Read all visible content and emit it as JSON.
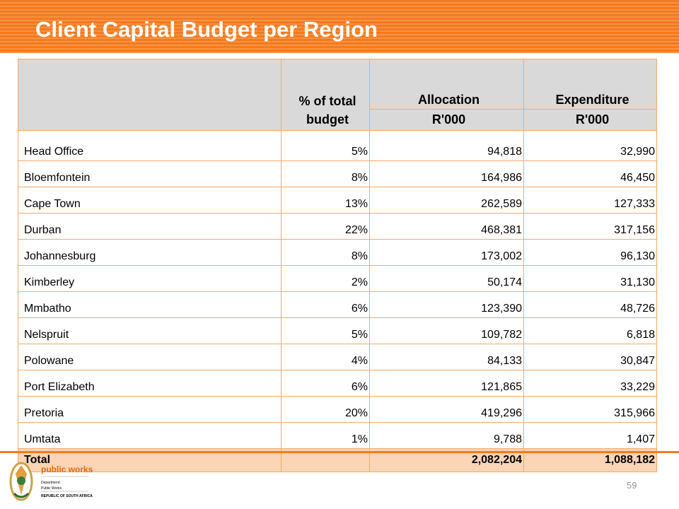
{
  "header": {
    "title": "Client Capital Budget per Region"
  },
  "table": {
    "columns": [
      "% of total budget",
      "Allocation",
      "Expenditure"
    ],
    "units": [
      "R'000",
      "R'000"
    ],
    "rows": [
      [
        "Head Office",
        "5%",
        "94,818",
        "32,990"
      ],
      [
        "Bloemfontein",
        "8%",
        "164,986",
        "46,450"
      ],
      [
        "Cape Town",
        "13%",
        "262,589",
        "127,333"
      ],
      [
        "Durban",
        "22%",
        "468,381",
        "317,156"
      ],
      [
        "Johannesburg",
        "8%",
        "173,002",
        "96,130"
      ],
      [
        "Kimberley",
        "2%",
        "50,174",
        "31,130"
      ],
      [
        "Mmbatho",
        "6%",
        "123,390",
        "48,726"
      ],
      [
        "Nelspruit",
        "5%",
        "109,782",
        "6,818"
      ],
      [
        "Polowane",
        "4%",
        "84,133",
        "30,847"
      ],
      [
        "Port Elizabeth",
        "6%",
        "121,865",
        "33,229"
      ],
      [
        "Pretoria",
        "20%",
        "419,296",
        "315,966"
      ],
      [
        "Umtata",
        "1%",
        "9,788",
        "1,407"
      ]
    ],
    "total": [
      "Total",
      "2,082,204",
      "1,088,182"
    ]
  },
  "footer": {
    "logo": {
      "name": "public works",
      "lines": [
        "Department:",
        "Public Works",
        "REPUBLIC OF SOUTH AFRICA"
      ]
    },
    "page": "59"
  }
}
